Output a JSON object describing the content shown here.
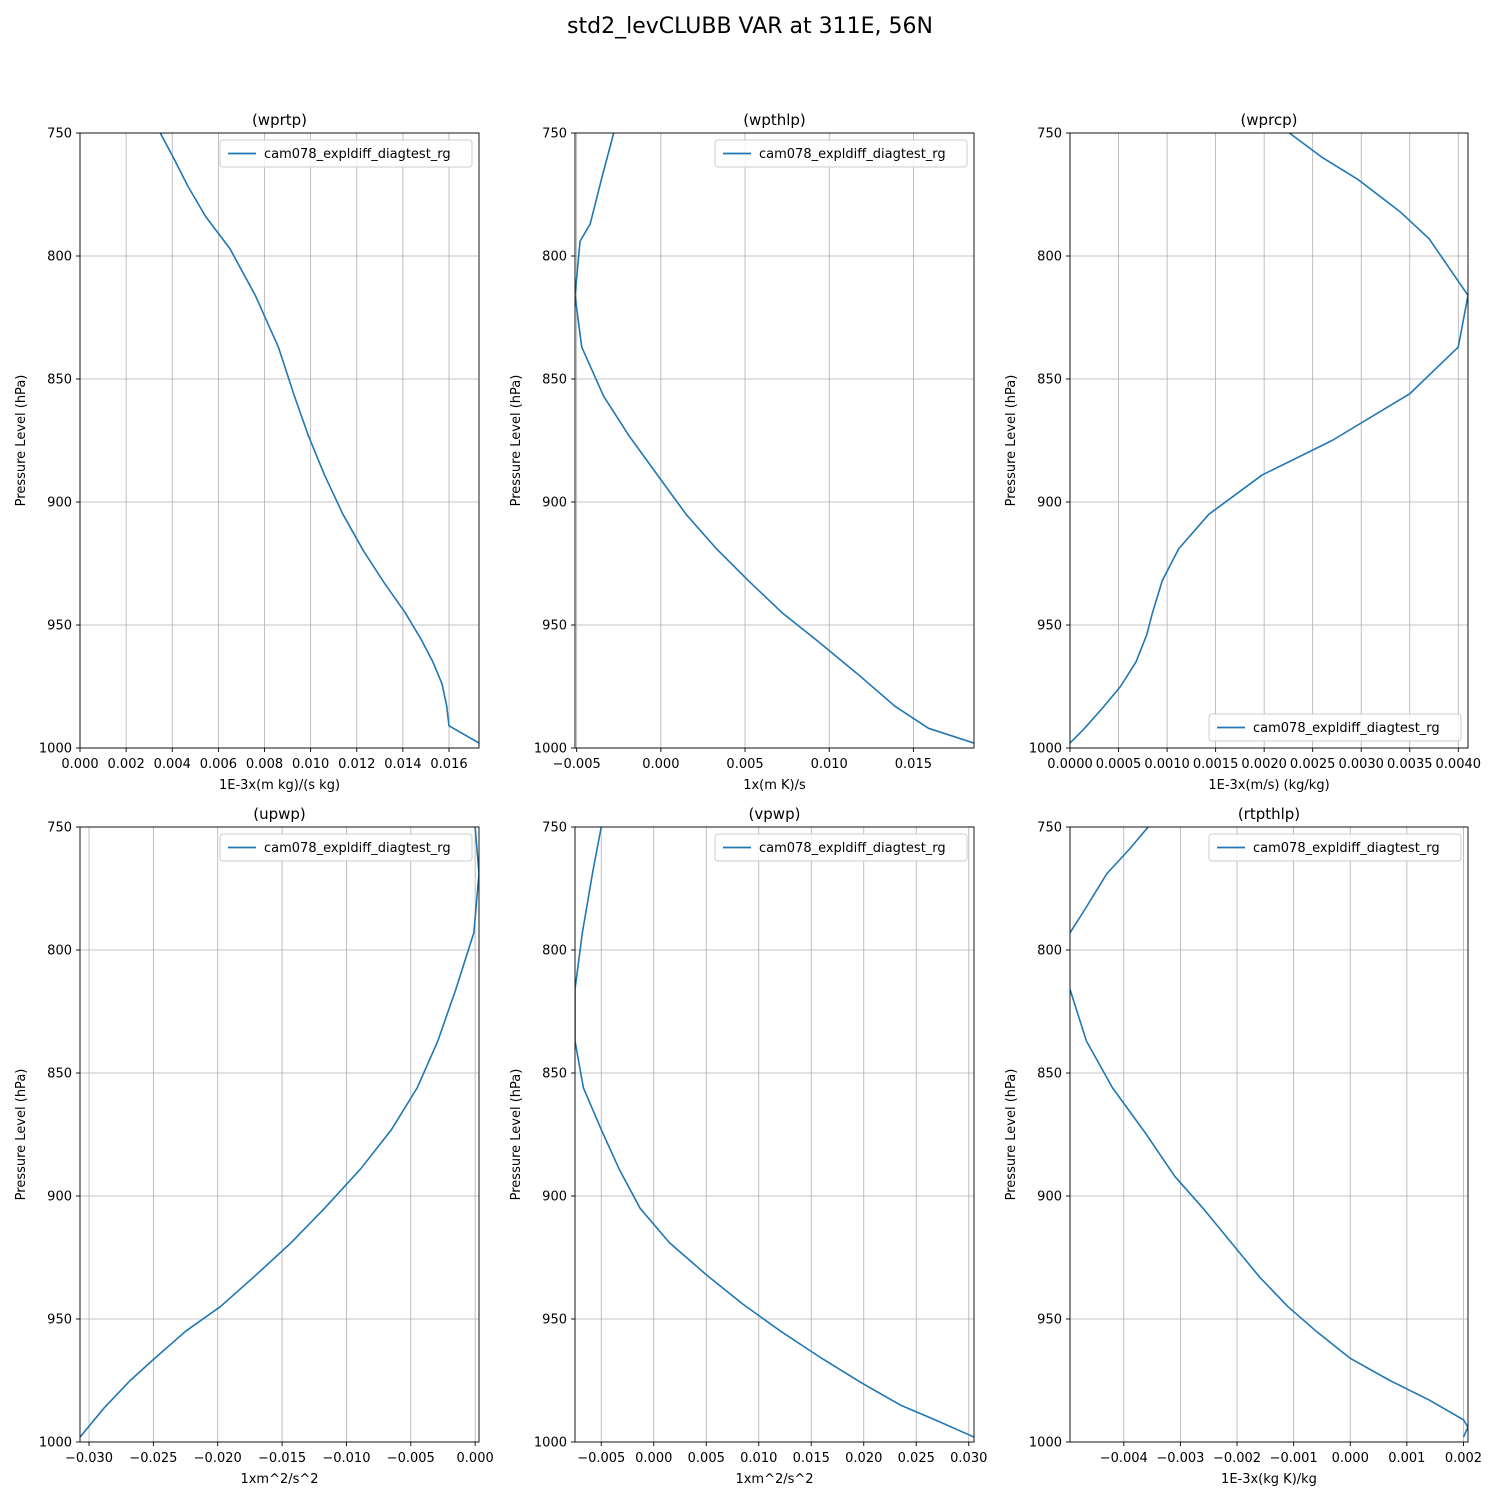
{
  "figure": {
    "title": "std2_levCLUBB VAR at 311E, 56N"
  },
  "chart_data": [
    {
      "type": "line",
      "title": "(wprtp)",
      "xlabel": "1E-3x(m kg)/(s kg)",
      "ylabel": "Pressure Level (hPa)",
      "xlim": [
        0.0,
        0.0173
      ],
      "ylim": [
        1000,
        750
      ],
      "xticks": [
        0.0,
        0.002,
        0.004,
        0.006,
        0.008,
        0.01,
        0.012,
        0.014,
        0.016
      ],
      "xtick_labels": [
        "0.000",
        "0.002",
        "0.004",
        "0.006",
        "0.008",
        "0.010",
        "0.012",
        "0.014",
        "0.016"
      ],
      "yticks": [
        750,
        800,
        850,
        900,
        950,
        1000
      ],
      "ytick_labels": [
        "750",
        "800",
        "850",
        "900",
        "950",
        "1000"
      ],
      "grid": true,
      "legend_position": "upper right",
      "series": [
        {
          "name": "cam078_expldiff_diagtest_rg",
          "color": "#1f77b4",
          "points": [
            [
              0.00348,
              750
            ],
            [
              0.00405,
              760
            ],
            [
              0.0047,
              772
            ],
            [
              0.00545,
              784
            ],
            [
              0.0065,
              797
            ],
            [
              0.0076,
              816
            ],
            [
              0.0086,
              837
            ],
            [
              0.0093,
              857
            ],
            [
              0.0099,
              873
            ],
            [
              0.0106,
              889
            ],
            [
              0.0114,
              905
            ],
            [
              0.0123,
              920
            ],
            [
              0.0132,
              933
            ],
            [
              0.0141,
              945
            ],
            [
              0.0148,
              956
            ],
            [
              0.0153,
              965
            ],
            [
              0.0157,
              974
            ],
            [
              0.0159,
              983
            ],
            [
              0.016,
              991
            ],
            [
              0.0173,
              998
            ]
          ]
        }
      ]
    },
    {
      "type": "line",
      "title": "(wpthlp)",
      "xlabel": "1x(m K)/s",
      "ylabel": "Pressure Level (hPa)",
      "xlim": [
        -0.0051,
        0.0186
      ],
      "ylim": [
        1000,
        750
      ],
      "xticks": [
        -0.005,
        0.0,
        0.005,
        0.01,
        0.015
      ],
      "xtick_labels": [
        "−0.005",
        "0.000",
        "0.005",
        "0.010",
        "0.015"
      ],
      "yticks": [
        750,
        800,
        850,
        900,
        950,
        1000
      ],
      "ytick_labels": [
        "750",
        "800",
        "850",
        "900",
        "950",
        "1000"
      ],
      "grid": true,
      "legend_position": "upper right",
      "series": [
        {
          "name": "cam078_expldiff_diagtest_rg",
          "color": "#1f77b4",
          "points": [
            [
              -0.0028,
              750
            ],
            [
              -0.0035,
              768
            ],
            [
              -0.0042,
              787
            ],
            [
              -0.0048,
              794
            ],
            [
              -0.0051,
              816
            ],
            [
              -0.0047,
              837
            ],
            [
              -0.0034,
              857
            ],
            [
              -0.0019,
              873
            ],
            [
              -0.0001,
              890
            ],
            [
              0.0015,
              905
            ],
            [
              0.0033,
              919
            ],
            [
              0.0052,
              932
            ],
            [
              0.0072,
              945
            ],
            [
              0.0094,
              957
            ],
            [
              0.0117,
              970
            ],
            [
              0.0139,
              983
            ],
            [
              0.0159,
              992
            ],
            [
              0.0186,
              998
            ]
          ]
        }
      ]
    },
    {
      "type": "line",
      "title": "(wprcp)",
      "xlabel": "1E-3x(m/s) (kg/kg)",
      "ylabel": "Pressure Level (hPa)",
      "xlim": [
        0.0,
        0.0041
      ],
      "ylim": [
        1000,
        750
      ],
      "xticks": [
        0.0,
        0.0005,
        0.001,
        0.0015,
        0.002,
        0.0025,
        0.003,
        0.0035,
        0.004
      ],
      "xtick_labels": [
        "0.0000",
        "0.0005",
        "0.0010",
        "0.0015",
        "0.0020",
        "0.0025",
        "0.0030",
        "0.0035",
        "0.0040"
      ],
      "yticks": [
        750,
        800,
        850,
        900,
        950,
        1000
      ],
      "ytick_labels": [
        "750",
        "800",
        "850",
        "900",
        "950",
        "1000"
      ],
      "grid": true,
      "legend_position": "lower right",
      "series": [
        {
          "name": "cam078_expldiff_diagtest_rg",
          "color": "#1f77b4",
          "points": [
            [
              0.00226,
              750
            ],
            [
              0.0026,
              760
            ],
            [
              0.00297,
              769
            ],
            [
              0.0034,
              782
            ],
            [
              0.0037,
              793
            ],
            [
              0.0041,
              816
            ],
            [
              0.004,
              837
            ],
            [
              0.0035,
              856
            ],
            [
              0.0027,
              875
            ],
            [
              0.00198,
              889
            ],
            [
              0.00143,
              905
            ],
            [
              0.00112,
              919
            ],
            [
              0.00095,
              932
            ],
            [
              0.00085,
              945
            ],
            [
              0.00079,
              954
            ],
            [
              0.00068,
              965
            ],
            [
              0.00052,
              975
            ],
            [
              0.00033,
              984
            ],
            [
              0.00015,
              992
            ],
            [
              0.0,
              998
            ]
          ]
        }
      ]
    },
    {
      "type": "line",
      "title": "(upwp)",
      "xlabel": "1xm^2/s^2",
      "ylabel": "Pressure Level (hPa)",
      "xlim": [
        -0.0307,
        0.0003
      ],
      "ylim": [
        1000,
        750
      ],
      "xticks": [
        -0.03,
        -0.025,
        -0.02,
        -0.015,
        -0.01,
        -0.005,
        0.0
      ],
      "xtick_labels": [
        "−0.030",
        "−0.025",
        "−0.020",
        "−0.015",
        "−0.010",
        "−0.005",
        "0.000"
      ],
      "yticks": [
        750,
        800,
        850,
        900,
        950,
        1000
      ],
      "ytick_labels": [
        "750",
        "800",
        "850",
        "900",
        "950",
        "1000"
      ],
      "grid": true,
      "legend_position": "upper right",
      "series": [
        {
          "name": "cam078_expldiff_diagtest_rg",
          "color": "#1f77b4",
          "points": [
            [
              0.0,
              750
            ],
            [
              0.0003,
              769
            ],
            [
              -0.0001,
              793
            ],
            [
              -0.0015,
              816
            ],
            [
              -0.0029,
              837
            ],
            [
              -0.0045,
              856
            ],
            [
              -0.0065,
              873
            ],
            [
              -0.0089,
              889
            ],
            [
              -0.0117,
              905
            ],
            [
              -0.0143,
              919
            ],
            [
              -0.017,
              932
            ],
            [
              -0.0198,
              945
            ],
            [
              -0.0225,
              955
            ],
            [
              -0.0249,
              966
            ],
            [
              -0.0268,
              975
            ],
            [
              -0.0288,
              986
            ],
            [
              -0.0307,
              998
            ]
          ]
        }
      ]
    },
    {
      "type": "line",
      "title": "(vpwp)",
      "xlabel": "1xm^2/s^2",
      "ylabel": "Pressure Level (hPa)",
      "xlim": [
        -0.0075,
        0.0305
      ],
      "ylim": [
        1000,
        750
      ],
      "xticks": [
        -0.005,
        0.0,
        0.005,
        0.01,
        0.015,
        0.02,
        0.025,
        0.03
      ],
      "xtick_labels": [
        "−0.005",
        "0.000",
        "0.005",
        "0.010",
        "0.015",
        "0.020",
        "0.025",
        "0.030"
      ],
      "yticks": [
        750,
        800,
        850,
        900,
        950,
        1000
      ],
      "ytick_labels": [
        "750",
        "800",
        "850",
        "900",
        "950",
        "1000"
      ],
      "grid": true,
      "legend_position": "upper right",
      "series": [
        {
          "name": "cam078_expldiff_diagtest_rg",
          "color": "#1f77b4",
          "points": [
            [
              -0.005,
              750
            ],
            [
              -0.0058,
              768
            ],
            [
              -0.0068,
              793
            ],
            [
              -0.0075,
              816
            ],
            [
              -0.0075,
              837
            ],
            [
              -0.0067,
              856
            ],
            [
              -0.005,
              873
            ],
            [
              -0.0033,
              889
            ],
            [
              -0.0013,
              905
            ],
            [
              0.0015,
              919
            ],
            [
              0.005,
              932
            ],
            [
              0.0085,
              944
            ],
            [
              0.0121,
              955
            ],
            [
              0.016,
              966
            ],
            [
              0.0198,
              976
            ],
            [
              0.0235,
              985
            ],
            [
              0.0268,
              991
            ],
            [
              0.0305,
              998
            ]
          ]
        }
      ]
    },
    {
      "type": "line",
      "title": "(rtpthlp)",
      "xlabel": "1E-3x(kg K)/kg",
      "ylabel": "Pressure Level (hPa)",
      "xlim": [
        -0.00495,
        0.00208
      ],
      "ylim": [
        1000,
        750
      ],
      "xticks": [
        -0.004,
        -0.003,
        -0.002,
        -0.001,
        0.0,
        0.001,
        0.002
      ],
      "xtick_labels": [
        "−0.004",
        "−0.003",
        "−0.002",
        "−0.001",
        "0.000",
        "0.001",
        "0.002"
      ],
      "yticks": [
        750,
        800,
        850,
        900,
        950,
        1000
      ],
      "ytick_labels": [
        "750",
        "800",
        "850",
        "900",
        "950",
        "1000"
      ],
      "grid": true,
      "legend_position": "upper right",
      "series": [
        {
          "name": "cam078_expldiff_diagtest_rg",
          "color": "#1f77b4",
          "points": [
            [
              -0.00357,
              750
            ],
            [
              -0.0039,
              759
            ],
            [
              -0.0043,
              769
            ],
            [
              -0.0047,
              784
            ],
            [
              -0.00495,
              793
            ],
            null,
            [
              -0.00495,
              816
            ],
            [
              -0.00466,
              837
            ],
            [
              -0.0042,
              856
            ],
            [
              -0.0036,
              875
            ],
            [
              -0.0031,
              892
            ],
            [
              -0.0026,
              905
            ],
            [
              -0.0021,
              919
            ],
            [
              -0.0016,
              933
            ],
            [
              -0.0011,
              945
            ],
            [
              -0.0006,
              955
            ],
            [
              0.0,
              966
            ],
            [
              0.0007,
              975
            ],
            [
              0.0014,
              983
            ],
            [
              0.002,
              991
            ],
            [
              0.00208,
              994
            ],
            [
              0.002,
              998
            ]
          ]
        }
      ]
    }
  ]
}
